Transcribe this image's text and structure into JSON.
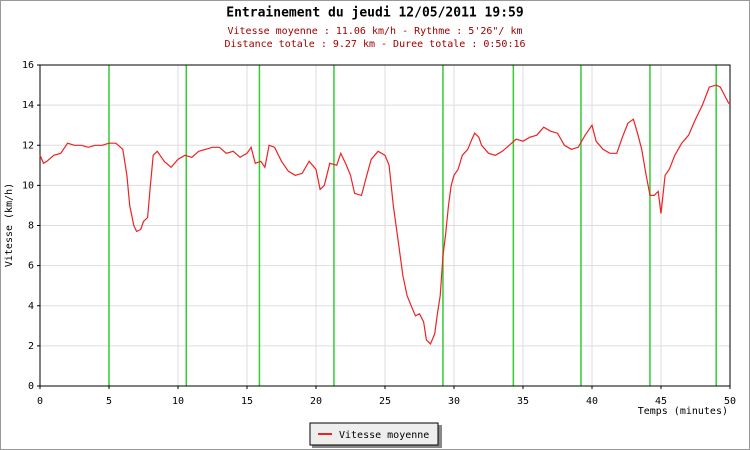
{
  "chart_data": {
    "type": "line",
    "title": "Entrainement du jeudi 12/05/2011 19:59",
    "subtitle_lines": [
      "Vitesse moyenne : 11.06 km/h - Rythme : 5'26\"/ km",
      "Distance totale : 9.27 km - Duree totale : 0:50:16"
    ],
    "xlabel": "Temps (minutes)",
    "ylabel": "Vitesse (km/h)",
    "xlim": [
      0,
      50
    ],
    "xticks": [
      0,
      5,
      10,
      15,
      20,
      25,
      30,
      35,
      40,
      45,
      50
    ],
    "ylim": [
      0,
      16
    ],
    "yticks": [
      0,
      2,
      4,
      6,
      8,
      10,
      12,
      14,
      16
    ],
    "grid": true,
    "legend": "bottom",
    "km_markers": [
      5.0,
      10.6,
      15.9,
      21.3,
      29.2,
      34.3,
      39.2,
      44.2,
      49.0
    ],
    "km_marker_color": "#33cc33",
    "x": [
      0,
      0.25,
      0.5,
      1,
      1.5,
      2,
      2.5,
      3,
      3.5,
      4,
      4.5,
      5,
      5.5,
      6,
      6.3,
      6.5,
      6.8,
      7,
      7.3,
      7.5,
      7.8,
      8,
      8.2,
      8.5,
      9,
      9.5,
      10,
      10.5,
      11,
      11.5,
      12,
      12.5,
      13,
      13.5,
      14,
      14.5,
      15,
      15.3,
      15.6,
      16,
      16.3,
      16.6,
      17,
      17.5,
      18,
      18.5,
      19,
      19.5,
      20,
      20.3,
      20.6,
      21,
      21.5,
      21.8,
      22.2,
      22.5,
      22.8,
      23.3,
      23.6,
      24,
      24.5,
      25,
      25.3,
      25.6,
      26,
      26.3,
      26.6,
      26.9,
      27.2,
      27.5,
      27.8,
      28,
      28.3,
      28.6,
      28.8,
      29,
      29.2,
      29.4,
      29.6,
      29.8,
      30,
      30.3,
      30.6,
      31,
      31.3,
      31.5,
      31.8,
      32,
      32.5,
      33,
      33.5,
      34,
      34.5,
      35,
      35.5,
      36,
      36.5,
      37,
      37.5,
      38,
      38.5,
      39,
      39.5,
      40,
      40.3,
      40.8,
      41.3,
      41.8,
      42.2,
      42.6,
      43,
      43.3,
      43.6,
      43.9,
      44.2,
      44.5,
      44.8,
      45,
      45.3,
      45.6,
      46,
      46.5,
      47,
      47.5,
      48,
      48.5,
      49,
      49.3,
      49.6,
      49.9,
      50
    ],
    "series": [
      {
        "name": "Vitesse moyenne",
        "color": "#ee2222",
        "values": [
          11.5,
          11.1,
          11.2,
          11.5,
          11.6,
          12.1,
          12.0,
          12.0,
          11.9,
          12.0,
          12.0,
          12.1,
          12.1,
          11.8,
          10.5,
          9.0,
          8.0,
          7.7,
          7.8,
          8.2,
          8.4,
          10.0,
          11.5,
          11.7,
          11.2,
          10.9,
          11.3,
          11.5,
          11.4,
          11.7,
          11.8,
          11.9,
          11.9,
          11.6,
          11.7,
          11.4,
          11.6,
          11.9,
          11.1,
          11.2,
          10.9,
          12.0,
          11.9,
          11.2,
          10.7,
          10.5,
          10.6,
          11.2,
          10.8,
          9.8,
          10.0,
          11.1,
          11.0,
          11.6,
          11.0,
          10.5,
          9.6,
          9.5,
          10.3,
          11.3,
          11.7,
          11.5,
          11.0,
          9.0,
          7.0,
          5.5,
          4.5,
          4.0,
          3.5,
          3.6,
          3.2,
          2.3,
          2.1,
          2.6,
          3.6,
          4.5,
          6.5,
          7.6,
          9.0,
          10.0,
          10.5,
          10.8,
          11.5,
          11.8,
          12.3,
          12.6,
          12.4,
          12.0,
          11.6,
          11.5,
          11.7,
          12.0,
          12.3,
          12.2,
          12.4,
          12.5,
          12.9,
          12.7,
          12.6,
          12.0,
          11.8,
          11.9,
          12.5,
          13.0,
          12.2,
          11.8,
          11.6,
          11.6,
          12.4,
          13.1,
          13.3,
          12.6,
          11.8,
          10.6,
          9.5,
          9.5,
          9.7,
          8.6,
          10.5,
          10.8,
          11.5,
          12.1,
          12.5,
          13.3,
          14.0,
          14.9,
          15.0,
          14.9,
          14.5,
          14.1,
          14.1
        ]
      }
    ]
  }
}
